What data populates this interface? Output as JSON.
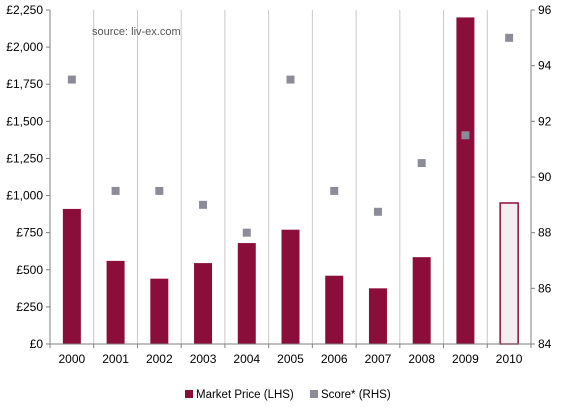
{
  "chart_data": {
    "type": "bar",
    "source_note": "source: liv-ex.com",
    "categories": [
      "2000",
      "2001",
      "2002",
      "2003",
      "2004",
      "2005",
      "2006",
      "2007",
      "2008",
      "2009",
      "2010"
    ],
    "series": [
      {
        "name": "Market Price (LHS)",
        "kind": "bar",
        "axis": "left",
        "values": [
          910,
          560,
          440,
          545,
          680,
          770,
          460,
          375,
          585,
          2200,
          950
        ],
        "color": "#8B0E3A",
        "last_bar_hollow": true,
        "hollow_fill": "#F5EEF0"
      },
      {
        "name": "Score* (RHS)",
        "kind": "scatter",
        "axis": "right",
        "values": [
          93.5,
          89.5,
          89.5,
          89.0,
          88.0,
          93.5,
          89.5,
          88.75,
          90.5,
          91.5,
          95.0
        ],
        "color": "#8C8C99"
      }
    ],
    "left_axis": {
      "min": 0,
      "max": 2250,
      "step": 250,
      "tick_labels": [
        "£0",
        "£250",
        "£500",
        "£750",
        "£1,000",
        "£1,250",
        "£1,500",
        "£1,750",
        "£2,000",
        "£2,250"
      ]
    },
    "right_axis": {
      "min": 84,
      "max": 96,
      "step": 2,
      "tick_labels": [
        "84",
        "86",
        "88",
        "90",
        "92",
        "94",
        "96"
      ]
    },
    "grid": "vertical",
    "legend_position": "bottom-center",
    "colors": {
      "grid": "#C8C8C8",
      "axis": "#808080"
    }
  }
}
